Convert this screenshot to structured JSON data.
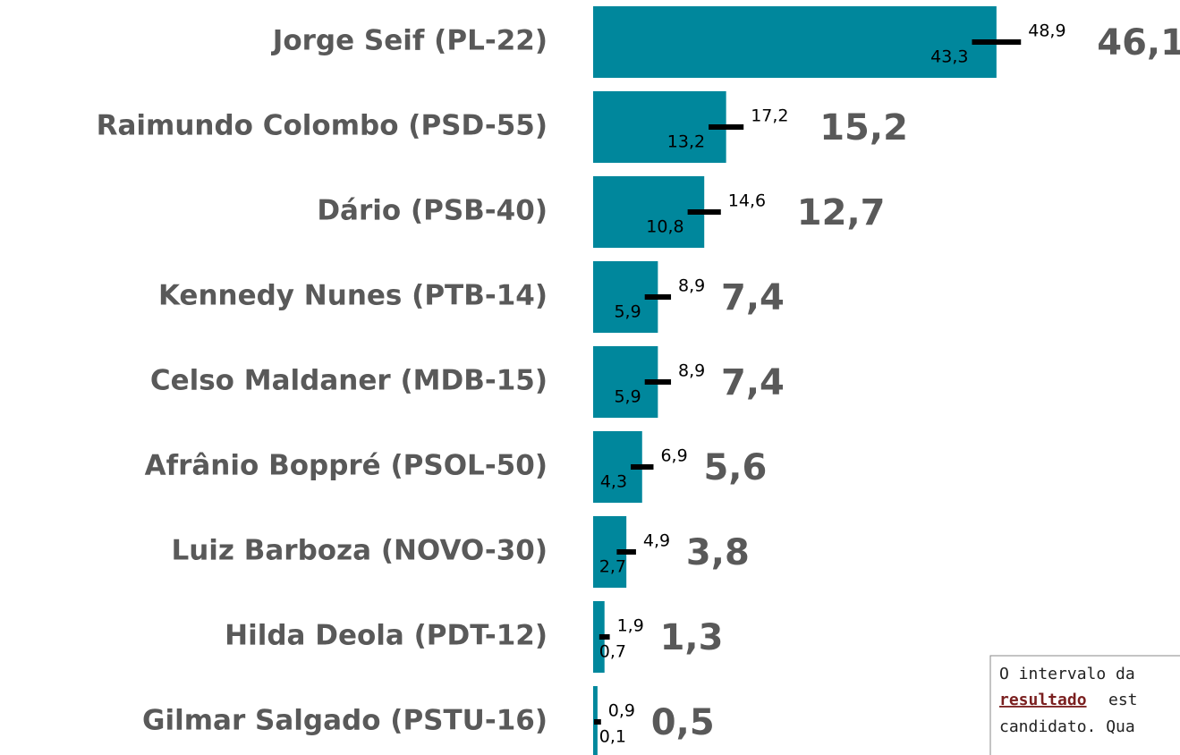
{
  "chart_data": {
    "type": "bar",
    "orientation": "horizontal",
    "color": "#00879c",
    "error_color": "#000000",
    "categories": [
      "Jorge Seif (PL-22)",
      "Raimundo Colombo (PSD-55)",
      "Dário (PSB-40)",
      "Kennedy Nunes (PTB-14)",
      "Celso Maldaner (MDB-15)",
      "Afrânio Boppré (PSOL-50)",
      "Luiz Barboza (NOVO-30)",
      "Hilda Deola (PDT-12)",
      "Gilmar Salgado (PSTU-16)"
    ],
    "values": [
      46.1,
      15.2,
      12.7,
      7.4,
      7.4,
      5.6,
      3.8,
      1.3,
      0.5
    ],
    "value_labels": [
      "46,1",
      "15,2",
      "12,7",
      "7,4",
      "7,4",
      "5,6",
      "3,8",
      "1,3",
      "0,5"
    ],
    "low": [
      43.3,
      13.2,
      10.8,
      5.9,
      5.9,
      4.3,
      2.7,
      0.7,
      0.1
    ],
    "low_labels": [
      "43,3",
      "13,2",
      "10,8",
      "5,9",
      "5,9",
      "4,3",
      "2,7",
      "0,7",
      "0,1"
    ],
    "high": [
      48.9,
      17.2,
      14.6,
      8.9,
      8.9,
      6.9,
      4.9,
      1.9,
      0.9
    ],
    "high_labels": [
      "48,9",
      "17,2",
      "14,6",
      "8,9",
      "8,9",
      "6,9",
      "4,9",
      "1,9",
      "0,9"
    ]
  },
  "note": {
    "line1": "O intervalo da",
    "line2_bold": "resultado",
    "line2_rest": "est",
    "line3": "candidato. Qua"
  }
}
